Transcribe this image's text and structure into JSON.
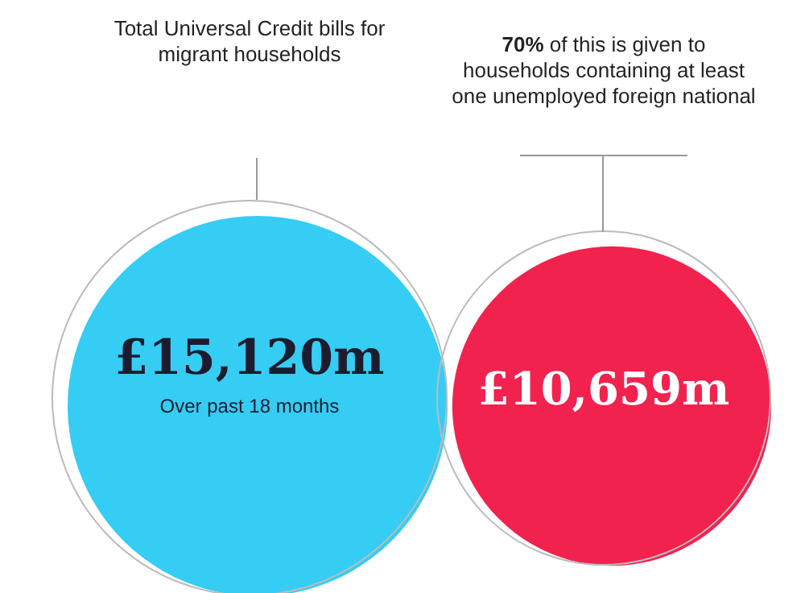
{
  "chart_data": {
    "type": "other",
    "categories": [
      "Total Universal Credit bills for migrant households",
      "70% of this is given to households containing at least one unemployed foreign national"
    ],
    "values": [
      15120,
      10659
    ],
    "value_labels": [
      "£15,120m",
      "£10,659m"
    ],
    "colors": [
      "#35cdf4",
      "#f2224f"
    ],
    "annotations": [
      "Over past 18 months"
    ]
  }
}
